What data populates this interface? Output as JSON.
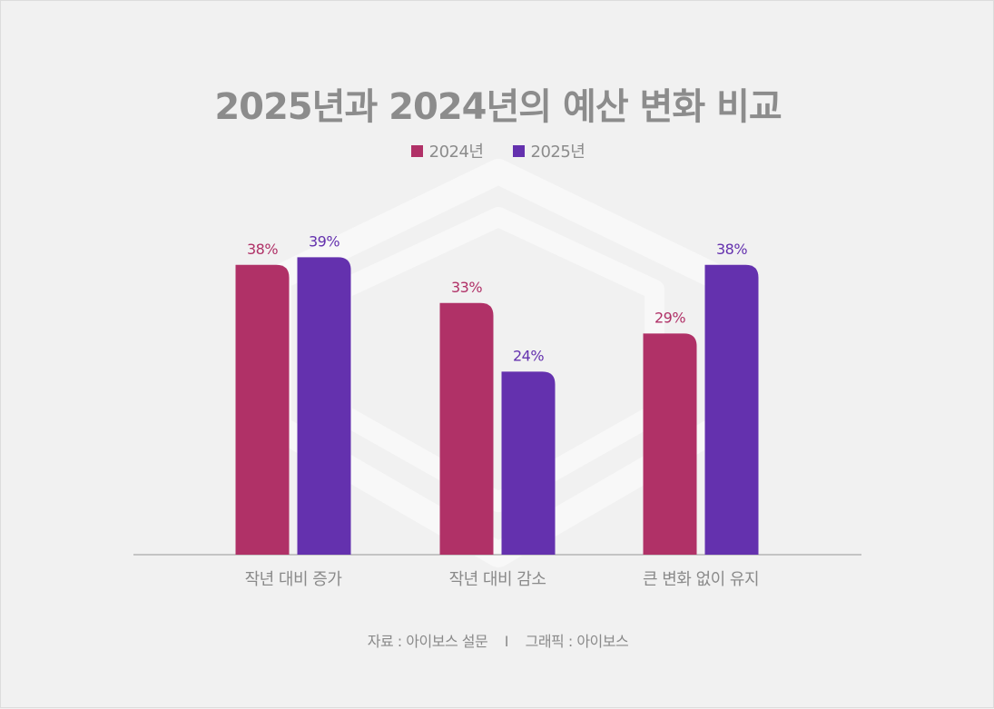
{
  "title": "2025년과 2024년의 예산 변화 비교",
  "source": {
    "data_source": "자료 : 아이보스 설문",
    "separator": "I",
    "graphic_credit": "그래픽 : 아이보스"
  },
  "colors": {
    "series_2024": "#b03167",
    "series_2025": "#6431ae",
    "axis": "#c4c4c4",
    "watermark": "#f8f8f8"
  },
  "chart_data": {
    "type": "bar",
    "title": "2025년과 2024년의 예산 변화 비교",
    "categories": [
      "작년 대비 증가",
      "작년 대비 감소",
      "큰 변화 없이 유지"
    ],
    "series": [
      {
        "name": "2024년",
        "values": [
          38,
          33,
          29
        ],
        "labels": [
          "38%",
          "33%",
          "29%"
        ]
      },
      {
        "name": "2025년",
        "values": [
          39,
          24,
          38
        ],
        "labels": [
          "39%",
          "24%",
          "38%"
        ]
      }
    ],
    "unit": "%",
    "ylim": [
      0,
      45
    ],
    "grid": false,
    "legend": "top-center"
  }
}
